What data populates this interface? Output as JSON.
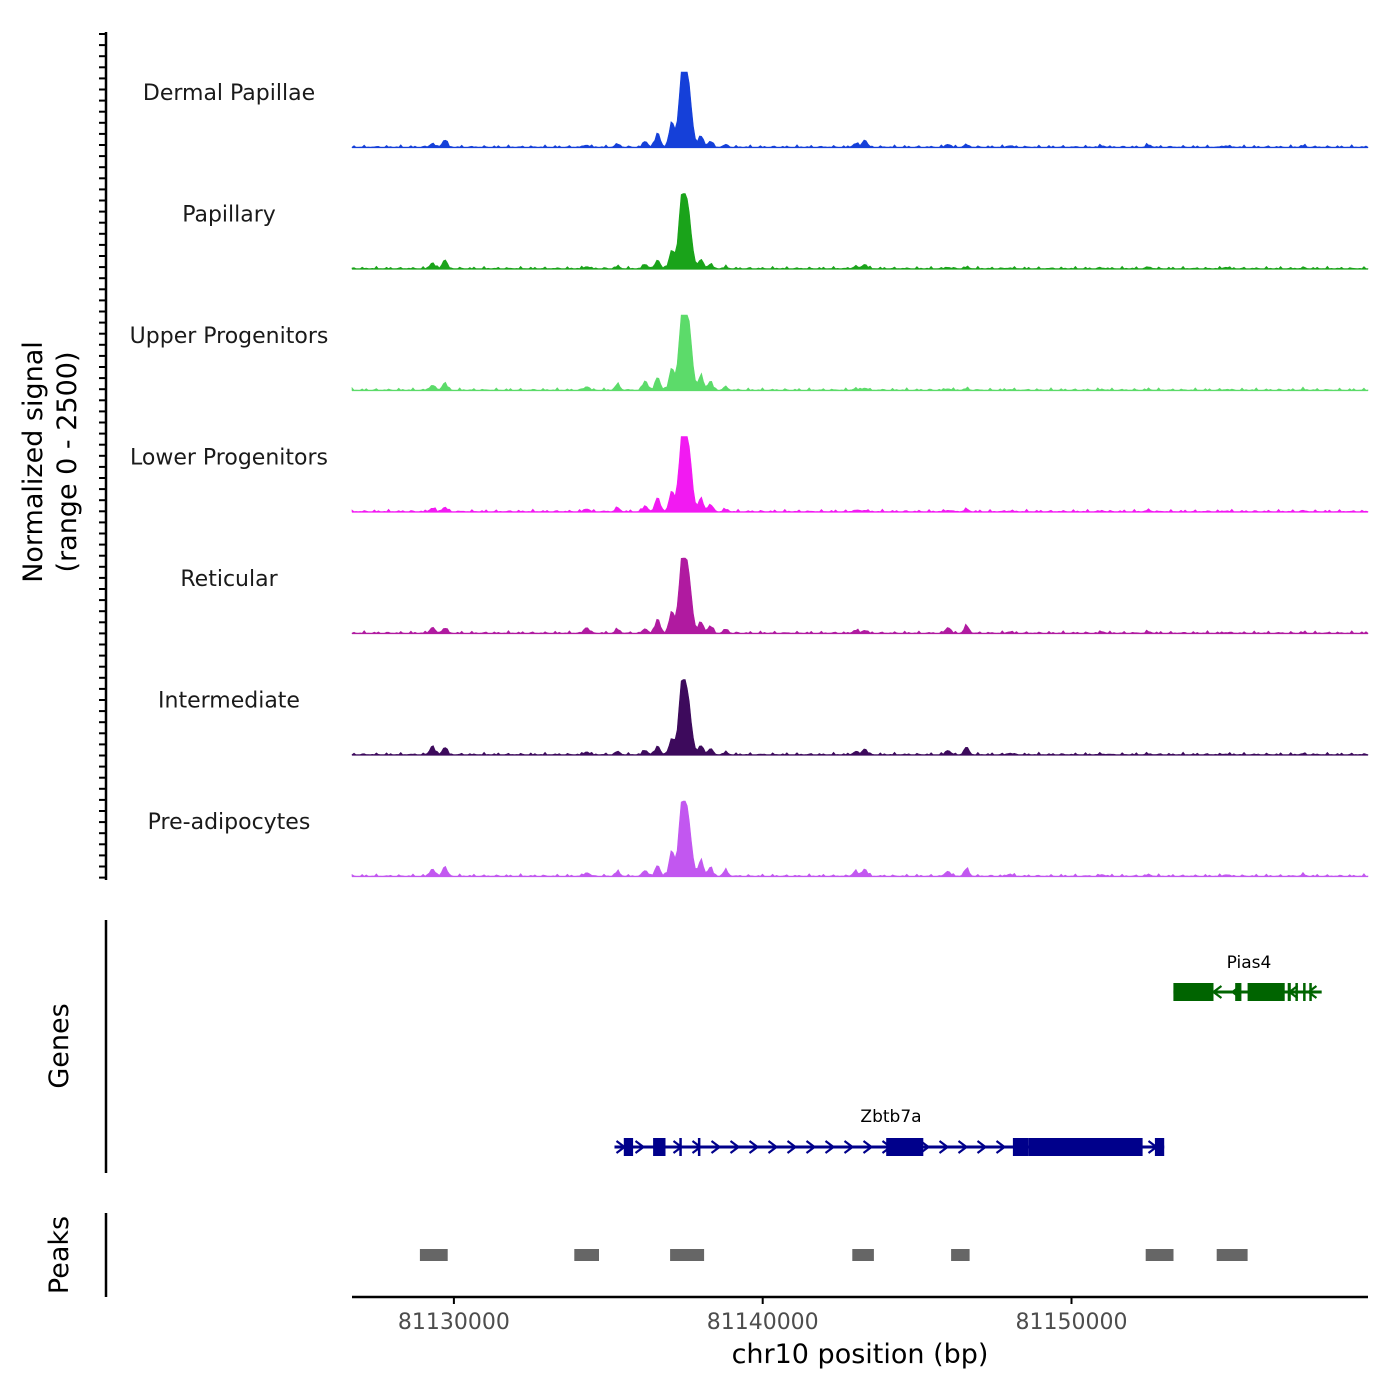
{
  "chart_data": {
    "type": "area",
    "title": "",
    "ylabel_line1": "Normalized signal",
    "ylabel_line2": "(range 0 - 2500)",
    "y_range": [
      0,
      2500
    ],
    "xlabel": "chr10 position (bp)",
    "xlim": [
      81126700,
      81159600
    ],
    "x_ticks": [
      81130000,
      81140000,
      81150000
    ],
    "x_tick_labels": [
      "81130000",
      "81140000",
      "81150000"
    ],
    "peak_positions": [
      81129300,
      81129700,
      81134300,
      81135300,
      81136200,
      81136600,
      81137050,
      81137400,
      81137600,
      81138000,
      81138300,
      81138800,
      81143000,
      81143300,
      81146000,
      81146600,
      81148000,
      81151000,
      81152500,
      81155000,
      81157500
    ],
    "tracks": [
      {
        "name": "Dermal Papillae",
        "color": "#1540d9",
        "peaks": [
          0.05,
          0.1,
          0.03,
          0.04,
          0.08,
          0.2,
          0.35,
          1.0,
          0.7,
          0.15,
          0.08,
          0.03,
          0.05,
          0.1,
          0.04,
          0.03,
          0.02,
          0.02,
          0.03,
          0.02,
          0.02
        ]
      },
      {
        "name": "Papillary",
        "color": "#1aa31a",
        "peaks": [
          0.08,
          0.12,
          0.03,
          0.03,
          0.06,
          0.12,
          0.25,
          1.0,
          0.6,
          0.12,
          0.06,
          0.02,
          0.03,
          0.06,
          0.02,
          0.02,
          0.01,
          0.01,
          0.02,
          0.02,
          0.01
        ]
      },
      {
        "name": "Upper Progenitors",
        "color": "#5cdb6a",
        "peaks": [
          0.07,
          0.1,
          0.05,
          0.08,
          0.13,
          0.18,
          0.3,
          1.0,
          0.8,
          0.2,
          0.12,
          0.04,
          0.02,
          0.03,
          0.02,
          0.02,
          0.01,
          0.01,
          0.01,
          0.01,
          0.01
        ]
      },
      {
        "name": "Lower Progenitors",
        "color": "#f21af2",
        "peaks": [
          0.05,
          0.06,
          0.04,
          0.05,
          0.08,
          0.2,
          0.28,
          1.0,
          0.75,
          0.18,
          0.1,
          0.03,
          0.02,
          0.02,
          0.02,
          0.03,
          0.01,
          0.01,
          0.02,
          0.01,
          0.01
        ]
      },
      {
        "name": "Reticular",
        "color": "#b01aa0",
        "peaks": [
          0.08,
          0.07,
          0.08,
          0.05,
          0.06,
          0.2,
          0.3,
          1.0,
          0.65,
          0.15,
          0.1,
          0.05,
          0.04,
          0.04,
          0.08,
          0.1,
          0.02,
          0.02,
          0.02,
          0.01,
          0.01
        ]
      },
      {
        "name": "Intermediate",
        "color": "#3d0a5c",
        "peaks": [
          0.12,
          0.1,
          0.04,
          0.04,
          0.06,
          0.12,
          0.22,
          1.0,
          0.55,
          0.12,
          0.08,
          0.03,
          0.04,
          0.08,
          0.06,
          0.1,
          0.02,
          0.01,
          0.01,
          0.01,
          0.01
        ]
      },
      {
        "name": "Pre-adipocytes",
        "color": "#c257f0",
        "peaks": [
          0.1,
          0.13,
          0.05,
          0.06,
          0.08,
          0.15,
          0.35,
          1.0,
          0.6,
          0.22,
          0.12,
          0.08,
          0.07,
          0.1,
          0.07,
          0.1,
          0.03,
          0.02,
          0.02,
          0.02,
          0.02
        ]
      }
    ],
    "genes_label": "Genes",
    "genes": [
      {
        "name": "Pias4",
        "color": "#006400",
        "strand": "-",
        "start": 81153300,
        "end": 81158100,
        "exons": [
          [
            81153300,
            81154600
          ],
          [
            81155300,
            81155500
          ],
          [
            81155700,
            81156900
          ],
          [
            81157000,
            81157100
          ],
          [
            81157250,
            81157330
          ],
          [
            81157500,
            81157560
          ],
          [
            81157700,
            81157760
          ]
        ]
      },
      {
        "name": "Zbtb7a",
        "color": "#00008b",
        "strand": "+",
        "start": 81135200,
        "end": 81153000,
        "exons": [
          [
            81135500,
            81135800
          ],
          [
            81136450,
            81136850
          ],
          [
            81137300,
            81137370
          ],
          [
            81137900,
            81137970
          ],
          [
            81144000,
            81145200
          ],
          [
            81148100,
            81148600
          ],
          [
            81148600,
            81152300
          ],
          [
            81152700,
            81153000
          ]
        ]
      }
    ],
    "peaks_label": "Peaks",
    "peaks": [
      [
        81128900,
        81129800
      ],
      [
        81133900,
        81134700
      ],
      [
        81137000,
        81138100
      ],
      [
        81142900,
        81143600
      ],
      [
        81146100,
        81146700
      ],
      [
        81152400,
        81153300
      ],
      [
        81154700,
        81155700
      ]
    ]
  }
}
